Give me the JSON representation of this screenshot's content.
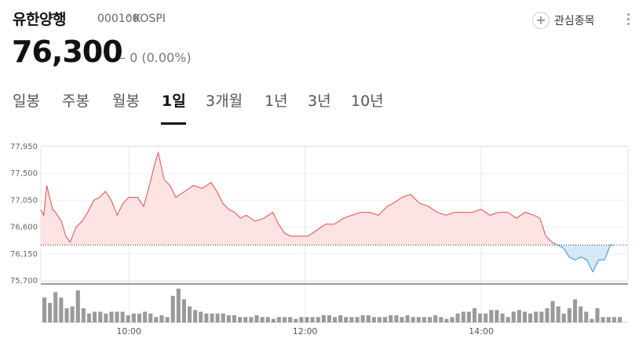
{
  "stock": {
    "name": "유한양행",
    "code": "000100",
    "market": "KOSPI",
    "price": "76,300",
    "change": "0 (0.00%)",
    "change_symbol": "–"
  },
  "actions": {
    "watchlist_label": "관심종목",
    "plus_icon": "+"
  },
  "tabs": [
    {
      "label": "일봉"
    },
    {
      "label": "주봉"
    },
    {
      "label": "월봉"
    },
    {
      "label": "1일",
      "active": true
    },
    {
      "label": "3개월"
    },
    {
      "label": "1년"
    },
    {
      "label": "3년"
    },
    {
      "label": "10년"
    }
  ],
  "colors": {
    "up": "#e54b4b",
    "up_fill": "#fde3e3",
    "down": "#3a8fd8",
    "down_fill": "#d6e9f8",
    "volume": "#9a9a9a"
  },
  "chart_data": {
    "type": "area",
    "y_ticks": [
      "77,950",
      "77,500",
      "77,050",
      "76,600",
      "76,150",
      "75,700"
    ],
    "x_ticks": [
      "10:00",
      "12:00",
      "14:00"
    ],
    "ylim": [
      75700,
      77950
    ],
    "baseline": 76300,
    "price_series": [
      {
        "t": "09:00",
        "v": 76900
      },
      {
        "t": "09:02",
        "v": 76800
      },
      {
        "t": "09:04",
        "v": 77300
      },
      {
        "t": "09:06",
        "v": 77100
      },
      {
        "t": "09:08",
        "v": 76900
      },
      {
        "t": "09:10",
        "v": 76850
      },
      {
        "t": "09:14",
        "v": 76700
      },
      {
        "t": "09:17",
        "v": 76450
      },
      {
        "t": "09:20",
        "v": 76350
      },
      {
        "t": "09:24",
        "v": 76600
      },
      {
        "t": "09:28",
        "v": 76700
      },
      {
        "t": "09:32",
        "v": 76850
      },
      {
        "t": "09:36",
        "v": 77050
      },
      {
        "t": "09:40",
        "v": 77100
      },
      {
        "t": "09:44",
        "v": 77200
      },
      {
        "t": "09:48",
        "v": 77050
      },
      {
        "t": "09:52",
        "v": 76800
      },
      {
        "t": "09:56",
        "v": 77000
      },
      {
        "t": "10:00",
        "v": 77100
      },
      {
        "t": "10:06",
        "v": 77100
      },
      {
        "t": "10:10",
        "v": 76950
      },
      {
        "t": "10:14",
        "v": 77300
      },
      {
        "t": "10:18",
        "v": 77700
      },
      {
        "t": "10:20",
        "v": 77850
      },
      {
        "t": "10:24",
        "v": 77400
      },
      {
        "t": "10:28",
        "v": 77300
      },
      {
        "t": "10:32",
        "v": 77100
      },
      {
        "t": "10:38",
        "v": 77200
      },
      {
        "t": "10:44",
        "v": 77300
      },
      {
        "t": "10:50",
        "v": 77250
      },
      {
        "t": "10:56",
        "v": 77350
      },
      {
        "t": "11:00",
        "v": 77200
      },
      {
        "t": "11:04",
        "v": 77000
      },
      {
        "t": "11:08",
        "v": 76900
      },
      {
        "t": "11:12",
        "v": 76850
      },
      {
        "t": "11:16",
        "v": 76750
      },
      {
        "t": "11:20",
        "v": 76800
      },
      {
        "t": "11:26",
        "v": 76700
      },
      {
        "t": "11:32",
        "v": 76750
      },
      {
        "t": "11:38",
        "v": 76850
      },
      {
        "t": "11:42",
        "v": 76650
      },
      {
        "t": "11:46",
        "v": 76500
      },
      {
        "t": "11:50",
        "v": 76450
      },
      {
        "t": "11:56",
        "v": 76450
      },
      {
        "t": "12:02",
        "v": 76450
      },
      {
        "t": "12:08",
        "v": 76550
      },
      {
        "t": "12:14",
        "v": 76650
      },
      {
        "t": "12:20",
        "v": 76650
      },
      {
        "t": "12:26",
        "v": 76750
      },
      {
        "t": "12:32",
        "v": 76800
      },
      {
        "t": "12:38",
        "v": 76850
      },
      {
        "t": "12:44",
        "v": 76850
      },
      {
        "t": "12:50",
        "v": 76800
      },
      {
        "t": "12:56",
        "v": 76950
      },
      {
        "t": "13:00",
        "v": 77000
      },
      {
        "t": "13:06",
        "v": 77100
      },
      {
        "t": "13:12",
        "v": 77150
      },
      {
        "t": "13:18",
        "v": 77000
      },
      {
        "t": "13:24",
        "v": 76950
      },
      {
        "t": "13:30",
        "v": 76850
      },
      {
        "t": "13:36",
        "v": 76800
      },
      {
        "t": "13:42",
        "v": 76850
      },
      {
        "t": "13:48",
        "v": 76850
      },
      {
        "t": "13:54",
        "v": 76850
      },
      {
        "t": "14:00",
        "v": 76900
      },
      {
        "t": "14:06",
        "v": 76800
      },
      {
        "t": "14:12",
        "v": 76850
      },
      {
        "t": "14:18",
        "v": 76850
      },
      {
        "t": "14:24",
        "v": 76750
      },
      {
        "t": "14:30",
        "v": 76850
      },
      {
        "t": "14:36",
        "v": 76800
      },
      {
        "t": "14:40",
        "v": 76750
      },
      {
        "t": "14:44",
        "v": 76450
      },
      {
        "t": "14:48",
        "v": 76350
      },
      {
        "t": "14:52",
        "v": 76300
      },
      {
        "t": "14:56",
        "v": 76250
      },
      {
        "t": "15:00",
        "v": 76100
      },
      {
        "t": "15:04",
        "v": 76050
      },
      {
        "t": "15:08",
        "v": 76100
      },
      {
        "t": "15:12",
        "v": 76050
      },
      {
        "t": "15:16",
        "v": 75850
      },
      {
        "t": "15:20",
        "v": 76050
      },
      {
        "t": "15:24",
        "v": 76050
      },
      {
        "t": "15:28",
        "v": 76300
      },
      {
        "t": "15:30",
        "v": 76300
      }
    ],
    "volume": [
      14,
      11,
      17,
      14,
      8,
      9,
      18,
      8,
      5,
      6,
      6,
      5,
      6,
      6,
      6,
      4,
      5,
      5,
      6,
      5,
      3,
      4,
      3,
      15,
      19,
      13,
      9,
      7,
      6,
      5,
      5,
      5,
      5,
      4,
      4,
      3,
      3,
      3,
      4,
      3,
      3,
      2,
      3,
      3,
      3,
      2,
      3,
      3,
      3,
      3,
      4,
      4,
      3,
      4,
      3,
      3,
      3,
      4,
      4,
      3,
      3,
      3,
      4,
      4,
      3,
      4,
      3,
      3,
      3,
      3,
      4,
      3,
      2,
      3,
      5,
      6,
      6,
      8,
      5,
      5,
      7,
      7,
      5,
      3,
      6,
      7,
      6,
      5,
      6,
      6,
      8,
      12,
      9,
      5,
      8,
      13,
      9,
      6,
      2,
      8,
      3,
      3,
      3,
      3
    ]
  }
}
